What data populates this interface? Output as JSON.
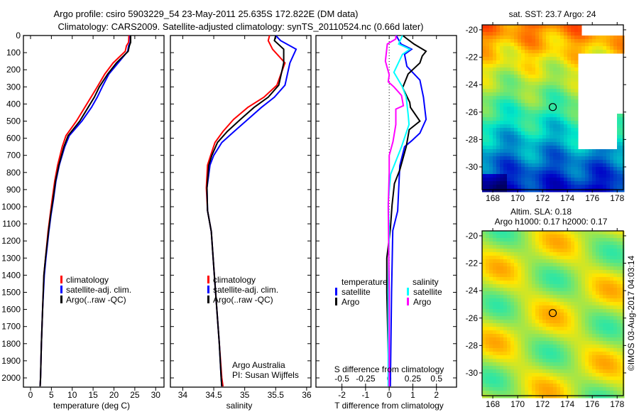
{
  "title_line1": "Argo profile: csiro 5903229_54 23-May-2011 25.635S 172.822E (DM data)",
  "title_line2": "Climatology: CARS2009. Satellite-adjusted climatology: synTS_20110524.nc (0.66d later)",
  "colors": {
    "climatology": "#ff0000",
    "satellite": "#0000ff",
    "argo": "#000000",
    "sal_satellite": "#00ffff",
    "sal_argo": "#ff00ff"
  },
  "chart_data": [
    {
      "type": "line",
      "name": "temperature-profile",
      "xlabel": "temperature (deg C)",
      "ylabel": "",
      "xlim": [
        -1.7,
        32
      ],
      "ylim": [
        2054,
        0
      ],
      "xticks": [
        0,
        5,
        10,
        15,
        20,
        25,
        30
      ],
      "yticks": [
        0,
        100,
        200,
        300,
        400,
        500,
        600,
        700,
        800,
        900,
        1000,
        1100,
        1200,
        1300,
        1400,
        1500,
        1600,
        1700,
        1800,
        1900,
        2000
      ],
      "legend": [
        "climatology",
        "satellite-adj. clim.",
        "Argo(..raw -QC)"
      ],
      "legend_position": "bottom-center",
      "depth": [
        0,
        40,
        60,
        92,
        160,
        225,
        300,
        360,
        420,
        500,
        585,
        650,
        757,
        850,
        957,
        1050,
        1145,
        1300,
        1400,
        1600,
        1800,
        2000,
        2050
      ],
      "series": [
        {
          "name": "climatology",
          "color": "#ff0000",
          "values": [
            23.6,
            23.5,
            23,
            22.7,
            19.8,
            17.8,
            16,
            14.5,
            13,
            11,
            8.5,
            7.6,
            6.5,
            5.8,
            5.2,
            4.7,
            4.2,
            3.6,
            3.2,
            2.9,
            2.6,
            2.4,
            2.3
          ]
        },
        {
          "name": "satellite-adj. clim.",
          "color": "#0000ff",
          "values": [
            23.9,
            23.9,
            23.5,
            23.3,
            21,
            18.8,
            17.2,
            16,
            14.6,
            12.3,
            9.3,
            8.2,
            6.9,
            6.1,
            5.5,
            4.9,
            4.4,
            3.7,
            3.3,
            2.9,
            2.6,
            2.4,
            2.3
          ]
        },
        {
          "name": "Argo(..raw -QC)",
          "color": "#000000",
          "values": [
            24,
            24,
            23.7,
            23.4,
            20.6,
            18.5,
            16.5,
            15.3,
            13.8,
            11.8,
            9,
            8,
            6.8,
            6,
            5.4,
            4.8,
            4.3,
            3.6,
            3.2,
            2.9,
            2.6,
            2.4,
            2.3
          ]
        }
      ]
    },
    {
      "type": "line",
      "name": "salinity-profile",
      "xlabel": "salinity",
      "xlim": [
        33.8,
        36.07
      ],
      "ylim": [
        2054,
        0
      ],
      "xticks": [
        34,
        34.5,
        35,
        35.5,
        36
      ],
      "legend": [
        "climatology",
        "satellite-adj. clim.",
        "Argo(..raw -QC)"
      ],
      "legend_position": "bottom-center",
      "annotation": [
        "Argo Australia",
        "PI: Susan Wijffels"
      ],
      "depth": [
        0,
        30,
        80,
        160,
        290,
        360,
        420,
        490,
        560,
        625,
        700,
        757,
        890,
        1023,
        1145,
        1300,
        1400,
        1600,
        1800,
        2000,
        2050
      ],
      "series": [
        {
          "name": "climatology",
          "color": "#ff0000",
          "values": [
            35.4,
            35.38,
            35.45,
            35.65,
            35.52,
            35.31,
            35.05,
            34.82,
            34.65,
            34.52,
            34.45,
            34.4,
            34.38,
            34.4,
            34.46,
            34.49,
            34.51,
            34.55,
            34.59,
            34.63,
            34.65
          ]
        },
        {
          "name": "satellite-adj. clim.",
          "color": "#0000ff",
          "values": [
            35.5,
            35.58,
            35.83,
            35.73,
            35.65,
            35.48,
            35.27,
            35.05,
            34.83,
            34.63,
            34.5,
            34.44,
            34.39,
            34.4,
            34.46,
            34.49,
            34.51,
            34.55,
            34.59,
            34.62,
            34.63
          ]
        },
        {
          "name": "Argo(..raw -QC)",
          "color": "#000000",
          "values": [
            35.5,
            35.48,
            35.63,
            35.63,
            35.55,
            35.38,
            35.15,
            34.93,
            34.72,
            34.56,
            34.47,
            34.42,
            34.39,
            34.4,
            34.46,
            34.49,
            34.51,
            34.55,
            34.59,
            34.62,
            34.63
          ]
        }
      ]
    },
    {
      "type": "line",
      "name": "difference-profile",
      "xlabel": "T difference from climatology",
      "xlabel2": "S difference from climatology",
      "xlim": [
        -3.1,
        2.85
      ],
      "xlim2": [
        -0.775,
        0.7125
      ],
      "ylim": [
        2054,
        0
      ],
      "xticks": [
        -2,
        -1,
        0,
        1,
        2
      ],
      "xticks2": [
        -0.5,
        -0.25,
        0,
        0.25,
        0.5
      ],
      "legend_headers": [
        "temperature",
        "salinity"
      ],
      "legend": [
        "satellite",
        "Argo",
        "satellite",
        "Argo"
      ],
      "legend_position": "bottom-center",
      "series": [
        {
          "name": "T satellite",
          "axis": "T",
          "color": "#0000ff",
          "depth": [
            0,
            50,
            80,
            110,
            180,
            260,
            360,
            490,
            570,
            615,
            650,
            760,
            1025,
            1140,
            1500,
            2050
          ],
          "values": [
            0.3,
            0.5,
            0.95,
            0.65,
            0.75,
            1.3,
            1.45,
            1.56,
            1.3,
            0.95,
            0.65,
            0.45,
            0.36,
            0.15,
            0.1,
            0.05
          ]
        },
        {
          "name": "T Argo",
          "axis": "T",
          "color": "#000000",
          "depth": [
            0,
            50,
            92,
            120,
            160,
            225,
            305,
            390,
            420,
            500,
            550,
            650,
            785,
            865,
            990,
            1130,
            1300,
            1500,
            1800,
            2050
          ],
          "values": [
            0.57,
            1.05,
            1.56,
            1.4,
            1.3,
            0.8,
            0.57,
            0.87,
            0.9,
            1.3,
            0.85,
            0.72,
            0.45,
            0.22,
            0.12,
            0.05,
            -0.1,
            -0.1,
            -0.05,
            0
          ]
        },
        {
          "name": "S satellite",
          "axis": "S",
          "color": "#00ffff",
          "depth": [
            0,
            50,
            80,
            110,
            215,
            300,
            360,
            460,
            520,
            650,
            810,
            975,
            1140,
            1500,
            2050
          ],
          "values": [
            0.14,
            0.1,
            0.22,
            0.14,
            0.05,
            0.14,
            0.18,
            0.2,
            0.21,
            0.13,
            0.015,
            -0.01,
            0,
            -0.01,
            -0.01
          ]
        },
        {
          "name": "S Argo",
          "axis": "S",
          "color": "#ff00ff",
          "depth": [
            0,
            20,
            50,
            150,
            230,
            270,
            300,
            350,
            410,
            430,
            520,
            620,
            700,
            800,
            1000,
            1500,
            2050
          ],
          "values": [
            0.07,
            0.07,
            -0.02,
            -0.04,
            0,
            -0.01,
            0.05,
            0.13,
            0.15,
            0.07,
            0.07,
            0.04,
            0,
            0,
            -0.01,
            0,
            0
          ]
        }
      ]
    },
    {
      "type": "heatmap",
      "name": "sst-map",
      "title": "sat. SST: 23.7 Argo: 24",
      "xlim": [
        167.14,
        178.5
      ],
      "ylim": [
        -31.66,
        -19.64
      ],
      "xticks": [
        168,
        170,
        172,
        174,
        176,
        178
      ],
      "yticks": [
        -20,
        -22,
        -24,
        -26,
        -28,
        -30
      ],
      "marker": {
        "lon": 172.822,
        "lat": -25.635
      }
    },
    {
      "type": "heatmap",
      "name": "sla-map",
      "title": "Altim. SLA: 0.18",
      "subtitle": "Argo h1000: 0.17 h2000: 0.17",
      "xlim": [
        167.14,
        178.5
      ],
      "ylim": [
        -31.66,
        -19.64
      ],
      "xticks": [
        168,
        170,
        172,
        174,
        176,
        178
      ],
      "yticks": [
        -20,
        -22,
        -24,
        -26,
        -28,
        -30
      ],
      "marker": {
        "lon": 172.822,
        "lat": -25.635
      }
    }
  ],
  "credit": "©IMOS 03-Aug-2017 04:03:14"
}
